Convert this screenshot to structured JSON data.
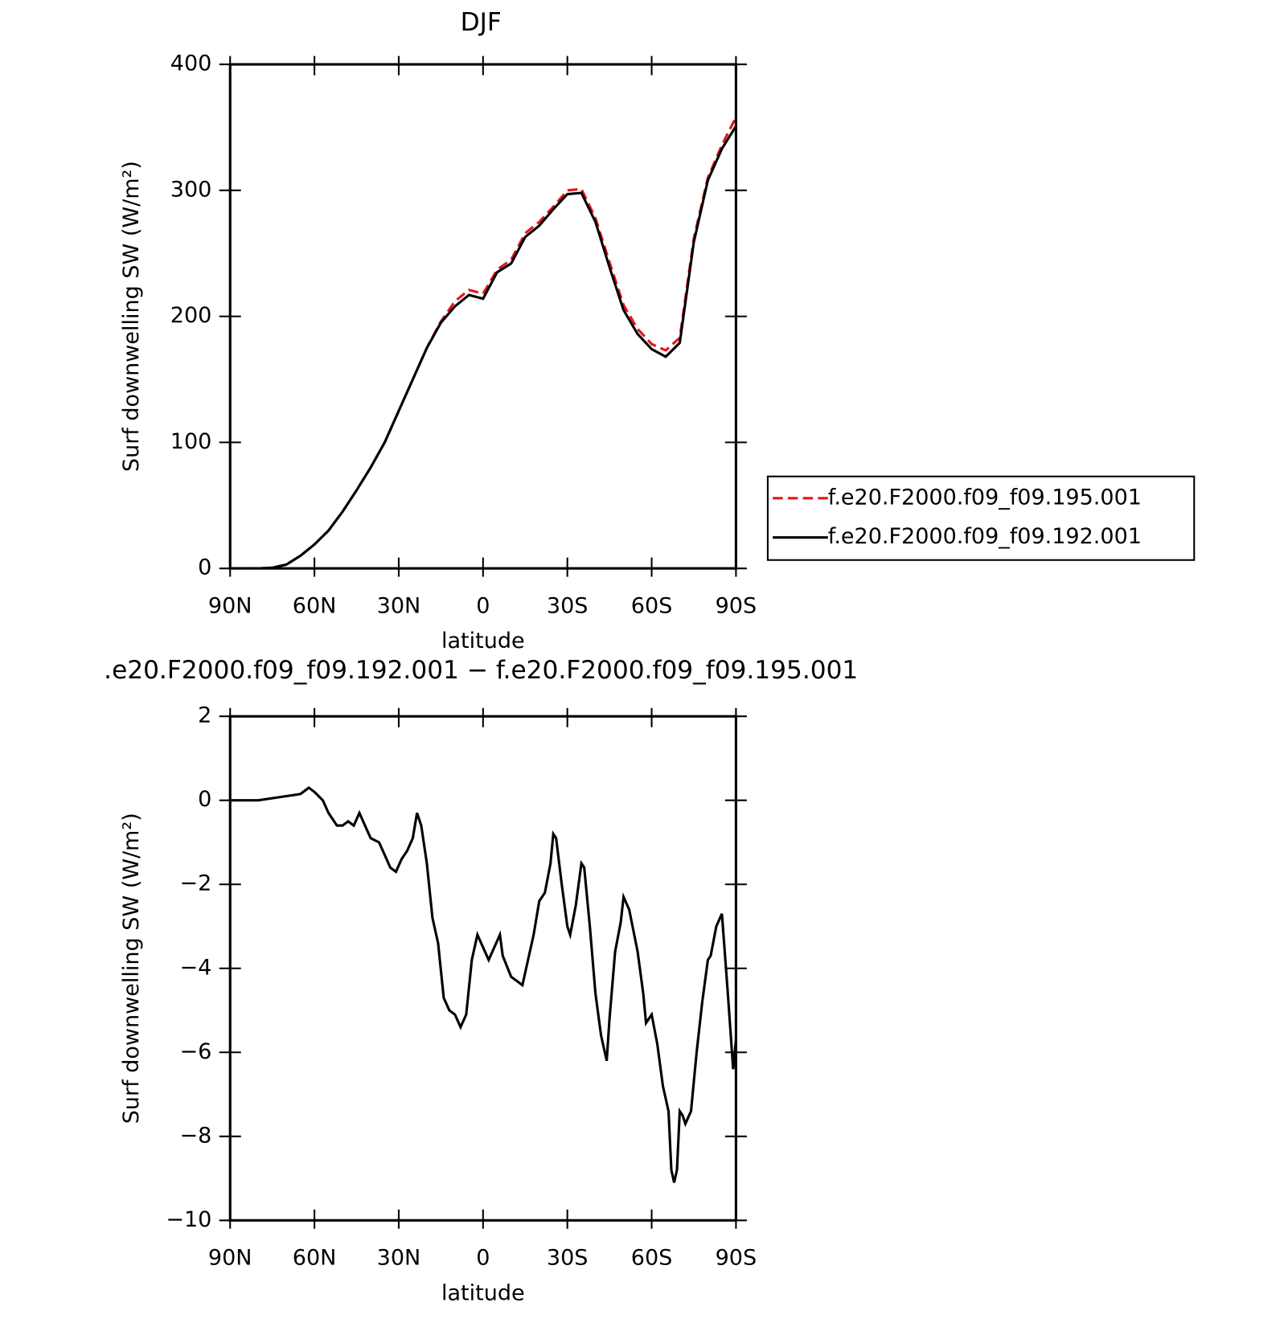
{
  "chart_data": [
    {
      "type": "line",
      "title": "DJF",
      "x_label": "latitude",
      "y_label": "Surf downwelling SW (W/m²)",
      "x": [
        90,
        85,
        80,
        75,
        70,
        65,
        60,
        55,
        50,
        45,
        40,
        35,
        30,
        25,
        20,
        15,
        10,
        5,
        0,
        -5,
        -10,
        -15,
        -20,
        -25,
        -30,
        -35,
        -40,
        -45,
        -50,
        -55,
        -60,
        -65,
        -70,
        -75,
        -80,
        -85,
        -90
      ],
      "series": [
        {
          "name": "f.e20.F2000.f09_f09.195.001",
          "color": "#e8141c",
          "dash": true,
          "values": [
            0,
            0,
            0,
            0.5,
            3,
            10,
            19,
            30,
            45,
            62,
            80,
            100,
            125,
            150,
            175,
            196,
            212,
            221,
            218,
            237,
            245,
            266,
            275,
            287,
            300,
            301,
            278,
            243,
            209,
            190,
            178,
            173,
            183,
            262,
            310,
            336,
            358
          ]
        },
        {
          "name": "f.e20.F2000.f09_f09.192.001",
          "color": "#000000",
          "dash": false,
          "values": [
            0,
            0,
            0,
            0.5,
            3,
            10,
            19,
            30,
            45,
            62,
            80,
            100,
            125,
            150,
            175,
            195,
            208,
            217,
            214,
            235,
            242,
            263,
            272,
            285,
            297,
            298,
            275,
            239,
            205,
            186,
            174,
            168,
            179,
            259,
            308,
            333,
            351
          ]
        }
      ],
      "xlim": [
        90,
        -90
      ],
      "xticks": [
        {
          "value": 90,
          "label": "90N"
        },
        {
          "value": 60,
          "label": "60N"
        },
        {
          "value": 30,
          "label": "30N"
        },
        0,
        {
          "value": -30,
          "label": "30S"
        },
        {
          "value": -60,
          "label": "60S"
        },
        {
          "value": -90,
          "label": "90S"
        }
      ],
      "ylim": [
        0,
        400
      ],
      "yticks": [
        0,
        100,
        200,
        300,
        400
      ],
      "legend": "right"
    },
    {
      "type": "line",
      "title": ".e20.F2000.f09_f09.192.001 − f.e20.F2000.f09_f09.195.001",
      "x_label": "latitude",
      "y_label": "Surf downwelling SW (W/m²)",
      "x": [
        90,
        80,
        70,
        65,
        62,
        60,
        57,
        55,
        52,
        50,
        48,
        46,
        44,
        42,
        40,
        37,
        35,
        33,
        31,
        29,
        27,
        25,
        23.5,
        22,
        20,
        18,
        16,
        14,
        12,
        10,
        8,
        6,
        4,
        2,
        0,
        -2,
        -4,
        -6,
        -7,
        -10,
        -12,
        -14,
        -16,
        -18,
        -20,
        -22,
        -24,
        -25,
        -26,
        -28,
        -30,
        -31,
        -33,
        -35,
        -36,
        -38,
        -40,
        -42,
        -44,
        -45,
        -47,
        -49,
        -50,
        -52,
        -55,
        -57,
        -58,
        -60,
        -62,
        -64,
        -66,
        -67,
        -68,
        -69,
        -70,
        -71,
        -72,
        -74,
        -76,
        -78,
        -80,
        -81,
        -83,
        -85,
        -87,
        -89,
        -90
      ],
      "series": [
        {
          "color": "#000000",
          "dash": false,
          "values": [
            0,
            0,
            0.1,
            0.15,
            0.3,
            0.2,
            0,
            -0.3,
            -0.6,
            -0.6,
            -0.5,
            -0.6,
            -0.3,
            -0.6,
            -0.9,
            -1.0,
            -1.3,
            -1.6,
            -1.7,
            -1.4,
            -1.2,
            -0.9,
            -0.3,
            -0.6,
            -1.5,
            -2.8,
            -3.4,
            -4.7,
            -5.0,
            -5.1,
            -5.4,
            -5.1,
            -3.8,
            -3.2,
            -3.5,
            -3.8,
            -3.5,
            -3.2,
            -3.7,
            -4.2,
            -4.3,
            -4.4,
            -3.8,
            -3.2,
            -2.4,
            -2.2,
            -1.5,
            -0.8,
            -0.9,
            -2.0,
            -3.0,
            -3.2,
            -2.5,
            -1.5,
            -1.6,
            -3.0,
            -4.6,
            -5.6,
            -6.2,
            -5.2,
            -3.6,
            -2.9,
            -2.3,
            -2.6,
            -3.6,
            -4.6,
            -5.3,
            -5.1,
            -5.8,
            -6.8,
            -7.4,
            -8.8,
            -9.1,
            -8.8,
            -7.4,
            -7.5,
            -7.7,
            -7.4,
            -6.0,
            -4.8,
            -3.8,
            -3.7,
            -3.0,
            -2.7,
            -4.5,
            -6.4,
            -5.7
          ]
        }
      ],
      "xlim": [
        90,
        -90
      ],
      "xticks": [
        {
          "value": 90,
          "label": "90N"
        },
        {
          "value": 60,
          "label": "60N"
        },
        {
          "value": 30,
          "label": "30N"
        },
        0,
        {
          "value": -30,
          "label": "30S"
        },
        {
          "value": -60,
          "label": "60S"
        },
        {
          "value": -90,
          "label": "90S"
        }
      ],
      "ylim": [
        -10,
        2
      ],
      "yticks": [
        {
          "value": -10,
          "label": "−10"
        },
        {
          "value": -8,
          "label": "−8"
        },
        {
          "value": -6,
          "label": "−6"
        },
        {
          "value": -4,
          "label": "−4"
        },
        {
          "value": -2,
          "label": "−2"
        },
        0,
        2
      ]
    }
  ]
}
